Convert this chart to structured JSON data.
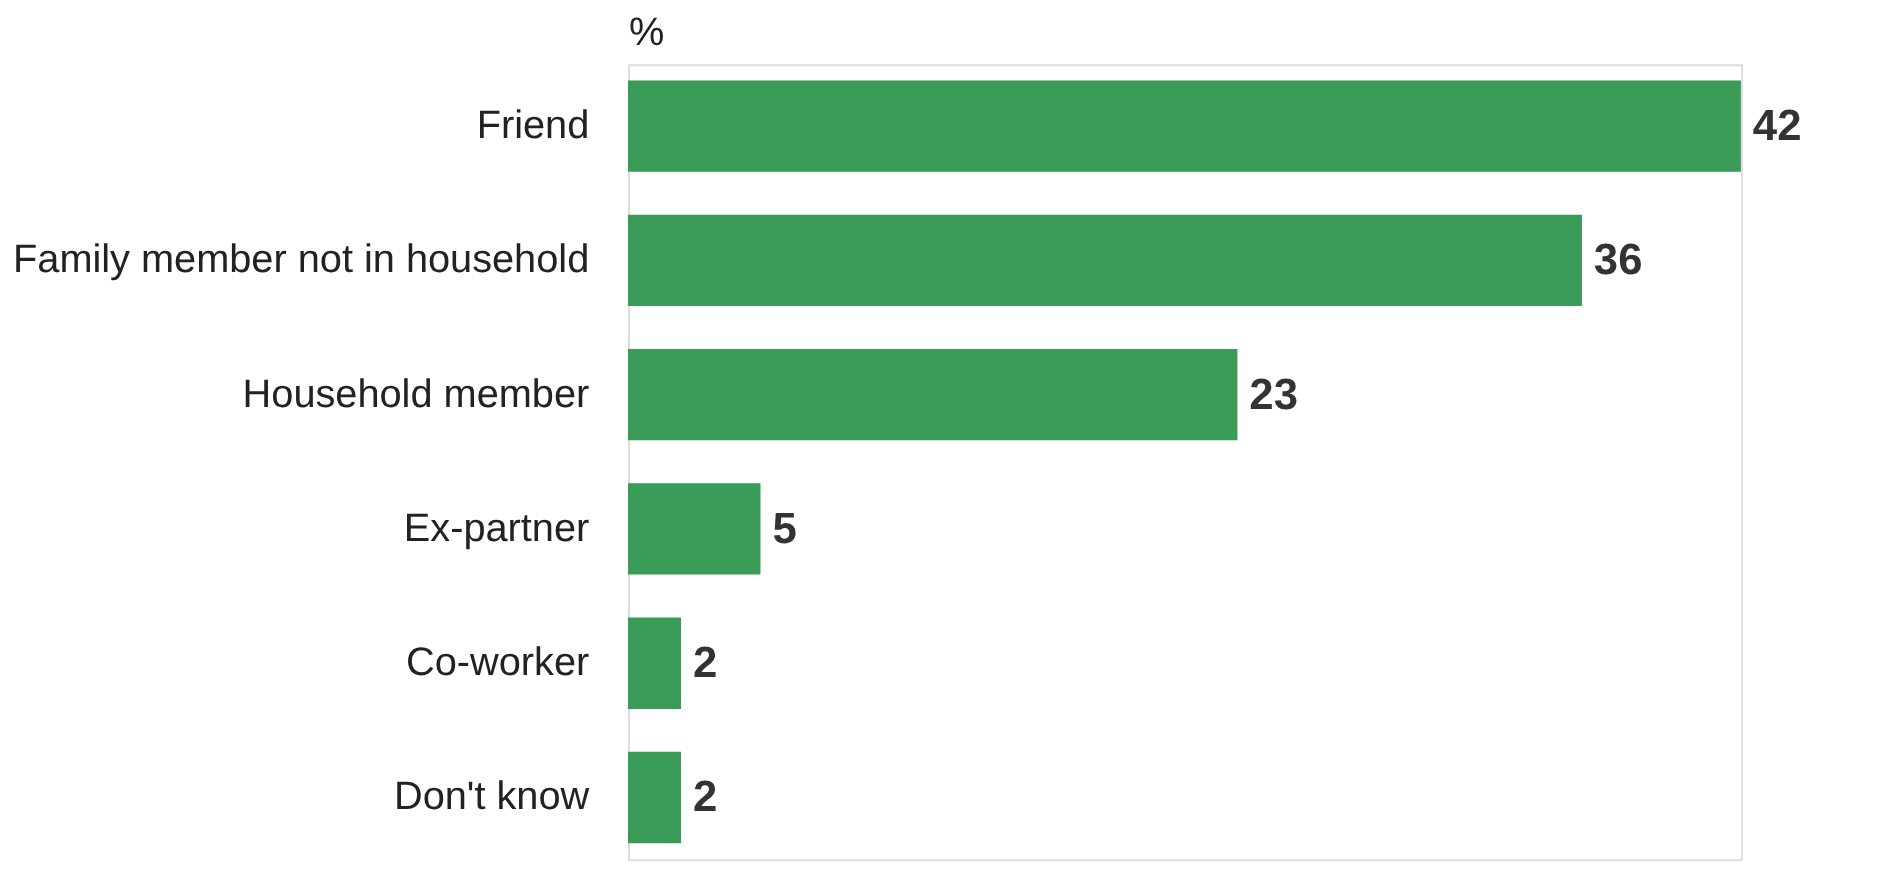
{
  "chart_data": {
    "type": "bar",
    "orientation": "horizontal",
    "xlabel": "%",
    "categories": [
      "Friend",
      "Family member not in household",
      "Household member",
      "Ex-partner",
      "Co-worker",
      "Don't know"
    ],
    "values": [
      42,
      36,
      23,
      5,
      2,
      2
    ],
    "color": "#3a9a58",
    "data_labels": true
  }
}
